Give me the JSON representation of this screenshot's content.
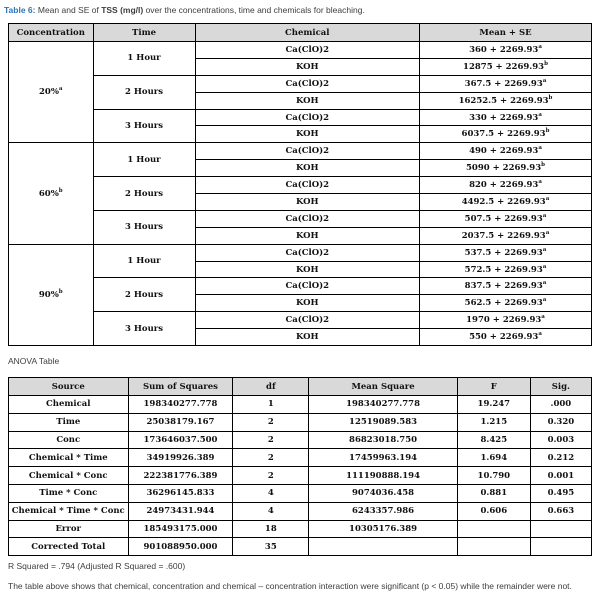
{
  "caption": {
    "label": "Table 6:",
    "text1": " Mean and SE of ",
    "bold": "TSS (mg/l)",
    "text2": " over the concentrations, time and chemicals for bleaching."
  },
  "table6": {
    "headers": [
      "Concentration",
      "Time",
      "Chemical",
      "Mean + SE"
    ],
    "groups": [
      {
        "concentration": "20%",
        "conc_sup": "a",
        "times": [
          {
            "time": "1 Hour",
            "rows": [
              {
                "chemical": "Ca(ClO)2",
                "mean": "360 + 2269.93",
                "sup": "a"
              },
              {
                "chemical": "KOH",
                "mean": "12875 + 2269.93",
                "sup": "b"
              }
            ]
          },
          {
            "time": "2 Hours",
            "rows": [
              {
                "chemical": "Ca(ClO)2",
                "mean": "367.5 + 2269.93",
                "sup": "a"
              },
              {
                "chemical": "KOH",
                "mean": "16252.5 + 2269.93",
                "sup": "b"
              }
            ]
          },
          {
            "time": "3 Hours",
            "rows": [
              {
                "chemical": "Ca(ClO)2",
                "mean": "330 + 2269.93",
                "sup": "a"
              },
              {
                "chemical": "KOH",
                "mean": "6037.5 + 2269.93",
                "sup": "b"
              }
            ]
          }
        ]
      },
      {
        "concentration": "60%",
        "conc_sup": "b",
        "times": [
          {
            "time": "1 Hour",
            "rows": [
              {
                "chemical": "Ca(ClO)2",
                "mean": "490 + 2269.93",
                "sup": "a"
              },
              {
                "chemical": "KOH",
                "mean": "5090 + 2269.93",
                "sup": "b"
              }
            ]
          },
          {
            "time": "2 Hours",
            "rows": [
              {
                "chemical": "Ca(ClO)2",
                "mean": "820 + 2269.93",
                "sup": "a"
              },
              {
                "chemical": "KOH",
                "mean": "4492.5 + 2269.93",
                "sup": "a"
              }
            ]
          },
          {
            "time": "3 Hours",
            "rows": [
              {
                "chemical": "Ca(ClO)2",
                "mean": "507.5 + 2269.93",
                "sup": "a"
              },
              {
                "chemical": "KOH",
                "mean": "2037.5 + 2269.93",
                "sup": "a"
              }
            ]
          }
        ]
      },
      {
        "concentration": "90%",
        "conc_sup": "b",
        "times": [
          {
            "time": "1 Hour",
            "rows": [
              {
                "chemical": "Ca(ClO)2",
                "mean": "537.5 + 2269.93",
                "sup": "a"
              },
              {
                "chemical": "KOH",
                "mean": "572.5 + 2269.93",
                "sup": "a"
              }
            ]
          },
          {
            "time": "2 Hours",
            "rows": [
              {
                "chemical": "Ca(ClO)2",
                "mean": "837.5 + 2269.93",
                "sup": "a"
              },
              {
                "chemical": "KOH",
                "mean": "562.5 + 2269.93",
                "sup": "a"
              }
            ]
          },
          {
            "time": "3 Hours",
            "rows": [
              {
                "chemical": "Ca(ClO)2",
                "mean": "1970 + 2269.93",
                "sup": "a"
              },
              {
                "chemical": "KOH",
                "mean": "550 + 2269.93",
                "sup": "a"
              }
            ]
          }
        ]
      }
    ]
  },
  "anova": {
    "title": "ANOVA Table",
    "headers": [
      "Source",
      "Sum of Squares",
      "df",
      "Mean Square",
      "F",
      "Sig."
    ],
    "rows": [
      [
        "Chemical",
        "198340277.778",
        "1",
        "198340277.778",
        "19.247",
        ".000"
      ],
      [
        "Time",
        "25038179.167",
        "2",
        "12519089.583",
        "1.215",
        "0.320"
      ],
      [
        "Conc",
        "173646037.500",
        "2",
        "86823018.750",
        "8.425",
        "0.003"
      ],
      [
        "Chemical * Time",
        "34919926.389",
        "2",
        "17459963.194",
        "1.694",
        "0.212"
      ],
      [
        "Chemical * Conc",
        "222381776.389",
        "2",
        "111190888.194",
        "10.790",
        "0.001"
      ],
      [
        "Time * Conc",
        "36296145.833",
        "4",
        "9074036.458",
        "0.881",
        "0.495"
      ],
      [
        "Chemical * Time * Conc",
        "24973431.944",
        "4",
        "6243357.986",
        "0.606",
        "0.663"
      ],
      [
        "Error",
        "185493175.000",
        "18",
        "10305176.389",
        "",
        ""
      ],
      [
        "Corrected Total",
        "901088950.000",
        "35",
        "",
        "",
        ""
      ]
    ]
  },
  "notes": {
    "r_squared": "R Squared = .794 (Adjusted R Squared = .600)",
    "paragraph": "The table above shows that chemical, concentration and chemical – concentration interaction were significant (p < 0.05) while the remainder were not."
  },
  "colors": {
    "accent_blue": "#2e74b5",
    "header_bg": "#d9d9d9",
    "border": "#000000"
  }
}
